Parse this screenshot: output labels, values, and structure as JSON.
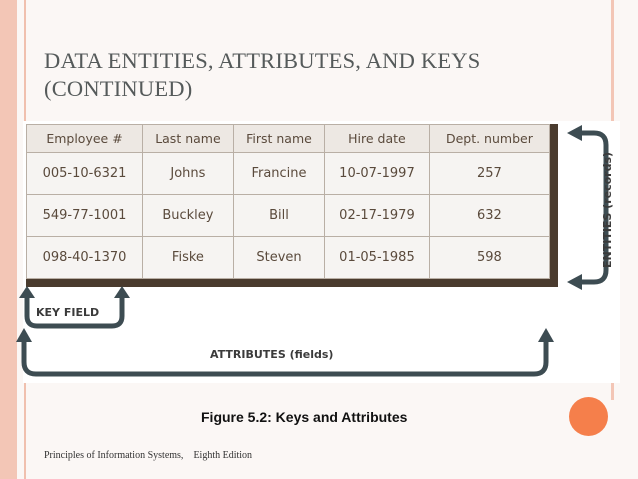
{
  "slide": {
    "title_line1": "DATA ENTITIES, ATTRIBUTES, AND KEYS",
    "title_line2": "(CONTINUED)",
    "caption": "Figure 5.2: Keys and Attributes",
    "footer_left": "Principles of Information Systems,",
    "footer_right": "Eighth Edition"
  },
  "figure": {
    "labels": {
      "key_field": "KEY FIELD",
      "attributes": "ATTRIBUTES (fields)",
      "entities": "ENTITIES (records)"
    },
    "table": {
      "headers": [
        "Employee #",
        "Last name",
        "First name",
        "Hire date",
        "Dept. number"
      ],
      "rows": [
        [
          "005-10-6321",
          "Johns",
          "Francine",
          "10-07-1997",
          "257"
        ],
        [
          "549-77-1001",
          "Buckley",
          "Bill",
          "02-17-1979",
          "632"
        ],
        [
          "098-40-1370",
          "Fiske",
          "Steven",
          "01-05-1985",
          "598"
        ]
      ]
    }
  },
  "colors": {
    "accent_orange": "#f57f4b",
    "side_bar": "#f3c6b6",
    "arrow": "#3d4c52",
    "table_shadow": "#4a3b2e"
  }
}
